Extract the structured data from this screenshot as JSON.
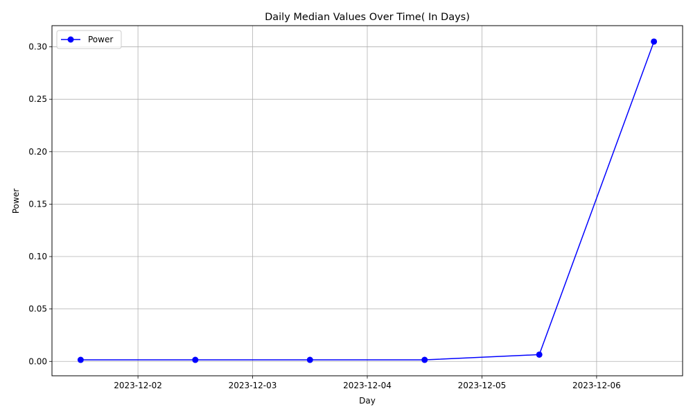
{
  "chart_data": {
    "type": "line",
    "title": "Daily Median Values Over Time( In Days)",
    "xlabel": "Day",
    "ylabel": "Power",
    "x": [
      "2023-12-01 12:00",
      "2023-12-02 12:00",
      "2023-12-03 12:00",
      "2023-12-04 12:00",
      "2023-12-05 12:00",
      "2023-12-06 12:00"
    ],
    "series": [
      {
        "name": "Power",
        "values": [
          0.0015,
          0.0015,
          0.0015,
          0.0015,
          0.0065,
          0.305
        ],
        "color": "#0000ff",
        "marker": "circle"
      }
    ],
    "xticks": [
      "2023-12-02",
      "2023-12-03",
      "2023-12-04",
      "2023-12-05",
      "2023-12-06"
    ],
    "yticks": [
      "0.00",
      "0.05",
      "0.10",
      "0.15",
      "0.20",
      "0.25",
      "0.30"
    ],
    "xlim": [
      "2023-12-01 06:00",
      "2023-12-06 18:00"
    ],
    "ylim": [
      -0.0137,
      0.3202
    ],
    "grid": true,
    "legend": "top-left"
  }
}
